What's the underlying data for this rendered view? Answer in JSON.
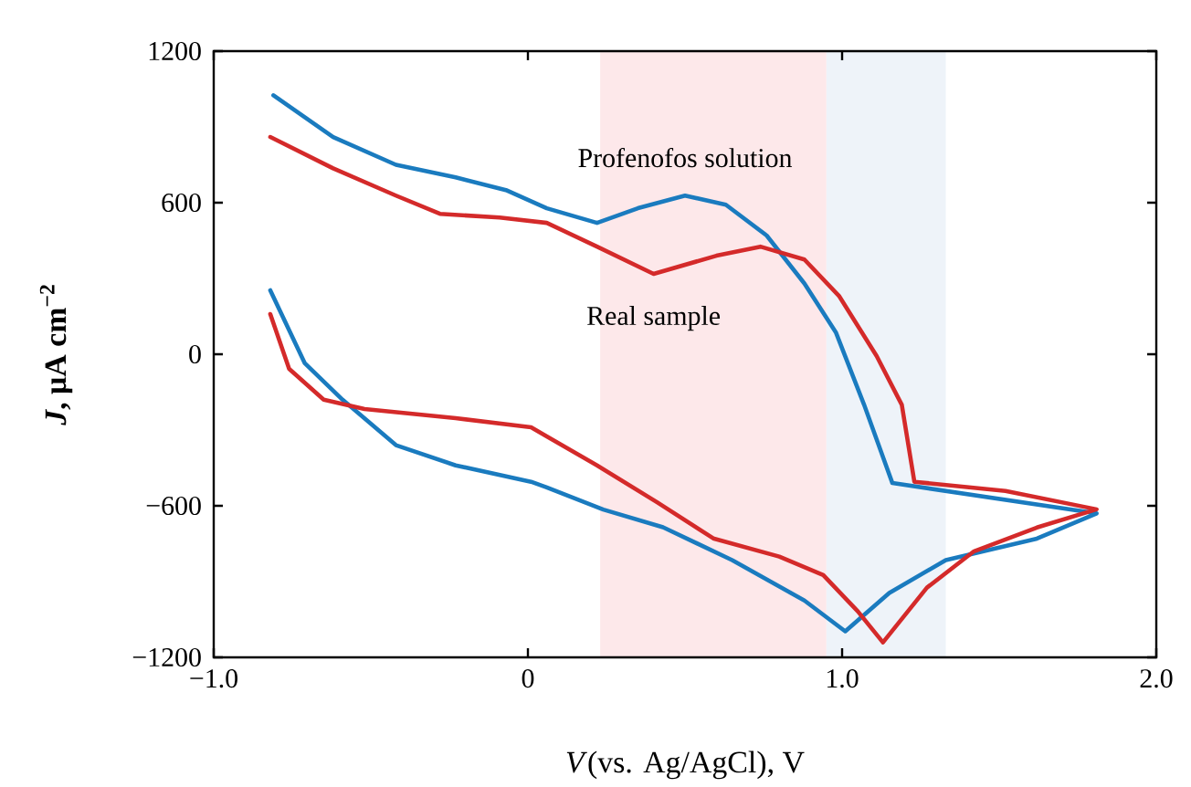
{
  "chart_data": {
    "type": "line",
    "xlabel": "*V*(vs. Ag/AgCl), V",
    "ylabel": "*J*, μA cm$^{−2}$",
    "xlim": [
      -1.0,
      2.0
    ],
    "ylim": [
      -1200,
      1200
    ],
    "xticks": [
      {
        "value": -1.0,
        "label": "−1.0"
      },
      {
        "value": 0,
        "label": "0"
      },
      {
        "value": 1.0,
        "label": "1.0"
      },
      {
        "value": 2.0,
        "label": "2.0"
      }
    ],
    "yticks": [
      {
        "value": -1200,
        "label": "−1200"
      },
      {
        "value": -600,
        "label": "−600"
      },
      {
        "value": 0,
        "label": "0"
      },
      600,
      1200
    ],
    "grid": false,
    "bands": [
      {
        "axis": "x",
        "from": 0.23,
        "to": 0.95,
        "color": "#fde8ea"
      },
      {
        "axis": "x",
        "from": 0.95,
        "to": 1.33,
        "color": "#eef3f9"
      }
    ],
    "series": [
      {
        "name": "Profenofos solution",
        "color": "#1a7bbf",
        "x": [
          -0.81,
          -0.62,
          -0.42,
          -0.23,
          -0.07,
          0.06,
          0.22,
          0.35,
          0.5,
          0.63,
          0.76,
          0.88,
          0.98,
          1.07,
          1.16,
          1.81,
          1.62,
          1.33,
          1.15,
          1.01,
          0.88,
          0.65,
          0.43,
          0.24,
          0.06,
          0.01,
          -0.23,
          -0.42,
          -0.59,
          -0.71,
          -0.82
        ],
        "values": [
          1025,
          860,
          750,
          700,
          650,
          578,
          520,
          578,
          628,
          592,
          470,
          280,
          87,
          -200,
          -510,
          -630,
          -730,
          -815,
          -945,
          -1097,
          -975,
          -815,
          -685,
          -615,
          -527,
          -505,
          -440,
          -360,
          -180,
          -36,
          253
        ]
      },
      {
        "name": "Real sample",
        "color": "#d42a2a",
        "x": [
          -0.82,
          -0.62,
          -0.42,
          -0.28,
          -0.09,
          0.06,
          0.22,
          0.4,
          0.6,
          0.74,
          0.88,
          0.99,
          1.11,
          1.19,
          1.23,
          1.52,
          1.81,
          1.62,
          1.42,
          1.27,
          1.13,
          1.05,
          0.94,
          0.8,
          0.59,
          0.41,
          0.22,
          0.06,
          0.01,
          -0.23,
          -0.52,
          -0.65,
          -0.76,
          -0.82
        ],
        "values": [
          860,
          736,
          628,
          556,
          541,
          520,
          426,
          318,
          390,
          426,
          375,
          231,
          -7,
          -200,
          -505,
          -541,
          -614,
          -686,
          -780,
          -924,
          -1141,
          -1018,
          -874,
          -801,
          -729,
          -585,
          -440,
          -325,
          -289,
          -253,
          -217,
          -180,
          -58,
          159
        ]
      }
    ]
  }
}
